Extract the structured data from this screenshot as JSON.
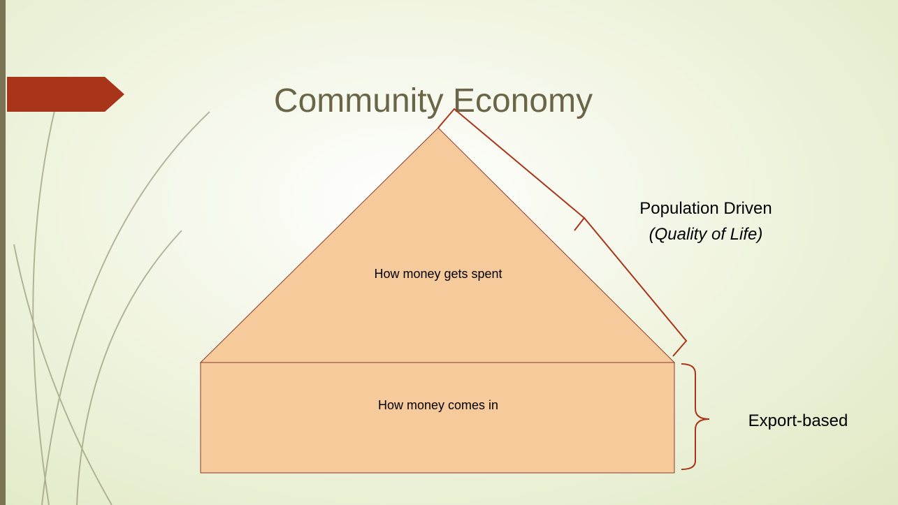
{
  "title": "Community Economy",
  "nodes": [
    {
      "label": "How money gets spent"
    },
    {
      "label": "How money comes in"
    }
  ],
  "annotations": [
    {
      "label": "Population Driven",
      "sublabel": "(Quality of Life)"
    },
    {
      "label": "Export-based"
    }
  ]
}
